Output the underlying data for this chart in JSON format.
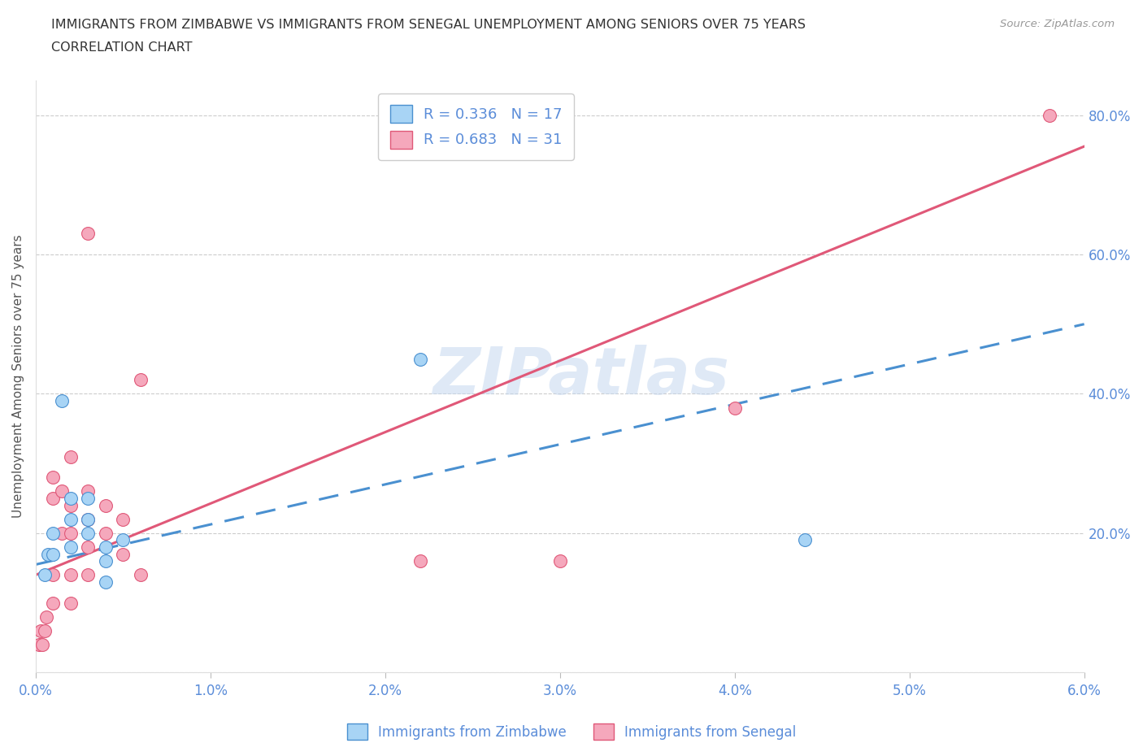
{
  "title_line1": "IMMIGRANTS FROM ZIMBABWE VS IMMIGRANTS FROM SENEGAL UNEMPLOYMENT AMONG SENIORS OVER 75 YEARS",
  "title_line2": "CORRELATION CHART",
  "source": "Source: ZipAtlas.com",
  "xlabel": "",
  "ylabel": "Unemployment Among Seniors over 75 years",
  "xlim": [
    0.0,
    0.06
  ],
  "ylim": [
    0.0,
    0.85
  ],
  "xticks": [
    0.0,
    0.01,
    0.02,
    0.03,
    0.04,
    0.05,
    0.06
  ],
  "xticklabels": [
    "0.0%",
    "1.0%",
    "2.0%",
    "3.0%",
    "4.0%",
    "5.0%",
    "6.0%"
  ],
  "yticks": [
    0.0,
    0.2,
    0.4,
    0.6,
    0.8
  ],
  "yticklabels": [
    "",
    "",
    "",
    "",
    ""
  ],
  "right_yticks": [
    0.0,
    0.2,
    0.4,
    0.6,
    0.8
  ],
  "right_yticklabels": [
    "",
    "20.0%",
    "40.0%",
    "60.0%",
    "80.0%"
  ],
  "zimbabwe_color": "#a8d4f5",
  "senegal_color": "#f5a8bc",
  "zimbabwe_line_color": "#4a90d0",
  "senegal_line_color": "#e05878",
  "R_zimbabwe": 0.336,
  "N_zimbabwe": 17,
  "R_senegal": 0.683,
  "N_senegal": 31,
  "zimbabwe_scatter_x": [
    0.0005,
    0.0007,
    0.001,
    0.001,
    0.0015,
    0.002,
    0.002,
    0.002,
    0.003,
    0.003,
    0.003,
    0.004,
    0.004,
    0.004,
    0.005,
    0.022,
    0.044
  ],
  "zimbabwe_scatter_y": [
    0.14,
    0.17,
    0.17,
    0.2,
    0.39,
    0.18,
    0.22,
    0.25,
    0.2,
    0.22,
    0.25,
    0.13,
    0.16,
    0.18,
    0.19,
    0.45,
    0.19
  ],
  "senegal_scatter_x": [
    0.0002,
    0.0003,
    0.0004,
    0.0005,
    0.0006,
    0.001,
    0.001,
    0.001,
    0.001,
    0.0015,
    0.0015,
    0.002,
    0.002,
    0.002,
    0.002,
    0.002,
    0.003,
    0.003,
    0.003,
    0.003,
    0.003,
    0.004,
    0.004,
    0.005,
    0.005,
    0.006,
    0.006,
    0.022,
    0.03,
    0.04,
    0.058
  ],
  "senegal_scatter_y": [
    0.04,
    0.06,
    0.04,
    0.06,
    0.08,
    0.1,
    0.14,
    0.25,
    0.28,
    0.2,
    0.26,
    0.1,
    0.14,
    0.2,
    0.24,
    0.31,
    0.14,
    0.18,
    0.22,
    0.26,
    0.63,
    0.2,
    0.24,
    0.17,
    0.22,
    0.14,
    0.42,
    0.16,
    0.16,
    0.38,
    0.8
  ],
  "senegal_line_x0": 0.0,
  "senegal_line_y0": 0.14,
  "senegal_line_x1": 0.06,
  "senegal_line_y1": 0.755,
  "zimbabwe_line_x0": 0.0,
  "zimbabwe_line_y0": 0.155,
  "zimbabwe_line_x1": 0.06,
  "zimbabwe_line_y1": 0.5,
  "watermark_text": "ZIPatlas",
  "background_color": "#ffffff",
  "grid_color": "#cccccc",
  "tick_label_color": "#5b8dd9",
  "title_color": "#333333",
  "legend_label_color": "#5b8dd9"
}
